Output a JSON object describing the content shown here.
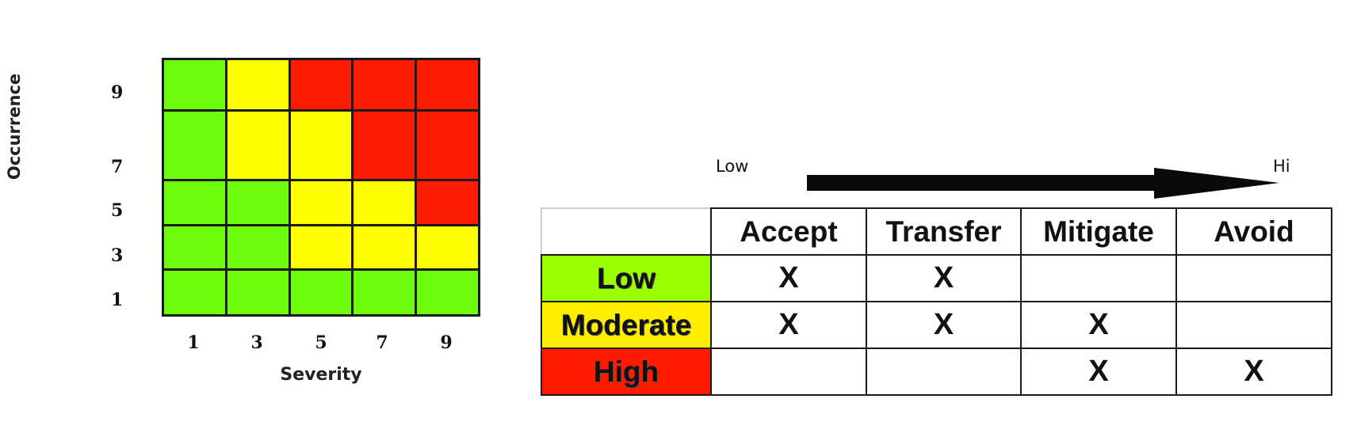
{
  "matrix": {
    "ylabel": "Occurrence",
    "xlabel": "Severity",
    "y_ticks": [
      "9",
      "7",
      "5",
      "3",
      "1"
    ],
    "x_ticks": [
      "1",
      "3",
      "5",
      "7",
      "9"
    ],
    "colors": {
      "green": "#6cfc0c",
      "yellow": "#ffff00",
      "red": "#fc1c04"
    },
    "rows": [
      [
        "green",
        "yellow",
        "red",
        "red",
        "red"
      ],
      [
        "green",
        "yellow",
        "yellow",
        "red",
        "red"
      ],
      [
        "green",
        "green",
        "yellow",
        "yellow",
        "red"
      ],
      [
        "green",
        "green",
        "yellow",
        "yellow",
        "yellow"
      ],
      [
        "green",
        "green",
        "green",
        "green",
        "green"
      ]
    ]
  },
  "scale_arrow": {
    "low_label": "Low",
    "high_label": "Hi"
  },
  "response_table": {
    "columns": [
      "Accept",
      "Transfer",
      "Mitigate",
      "Avoid"
    ],
    "rows": [
      {
        "label": "Low",
        "color": "#99ff00",
        "marks": [
          "X",
          "X",
          "",
          ""
        ]
      },
      {
        "label": "Moderate",
        "color": "#ffee00",
        "marks": [
          "X",
          "X",
          "X",
          ""
        ]
      },
      {
        "label": "High",
        "color": "#ff1a00",
        "marks": [
          "",
          "",
          "X",
          "X"
        ]
      }
    ]
  }
}
